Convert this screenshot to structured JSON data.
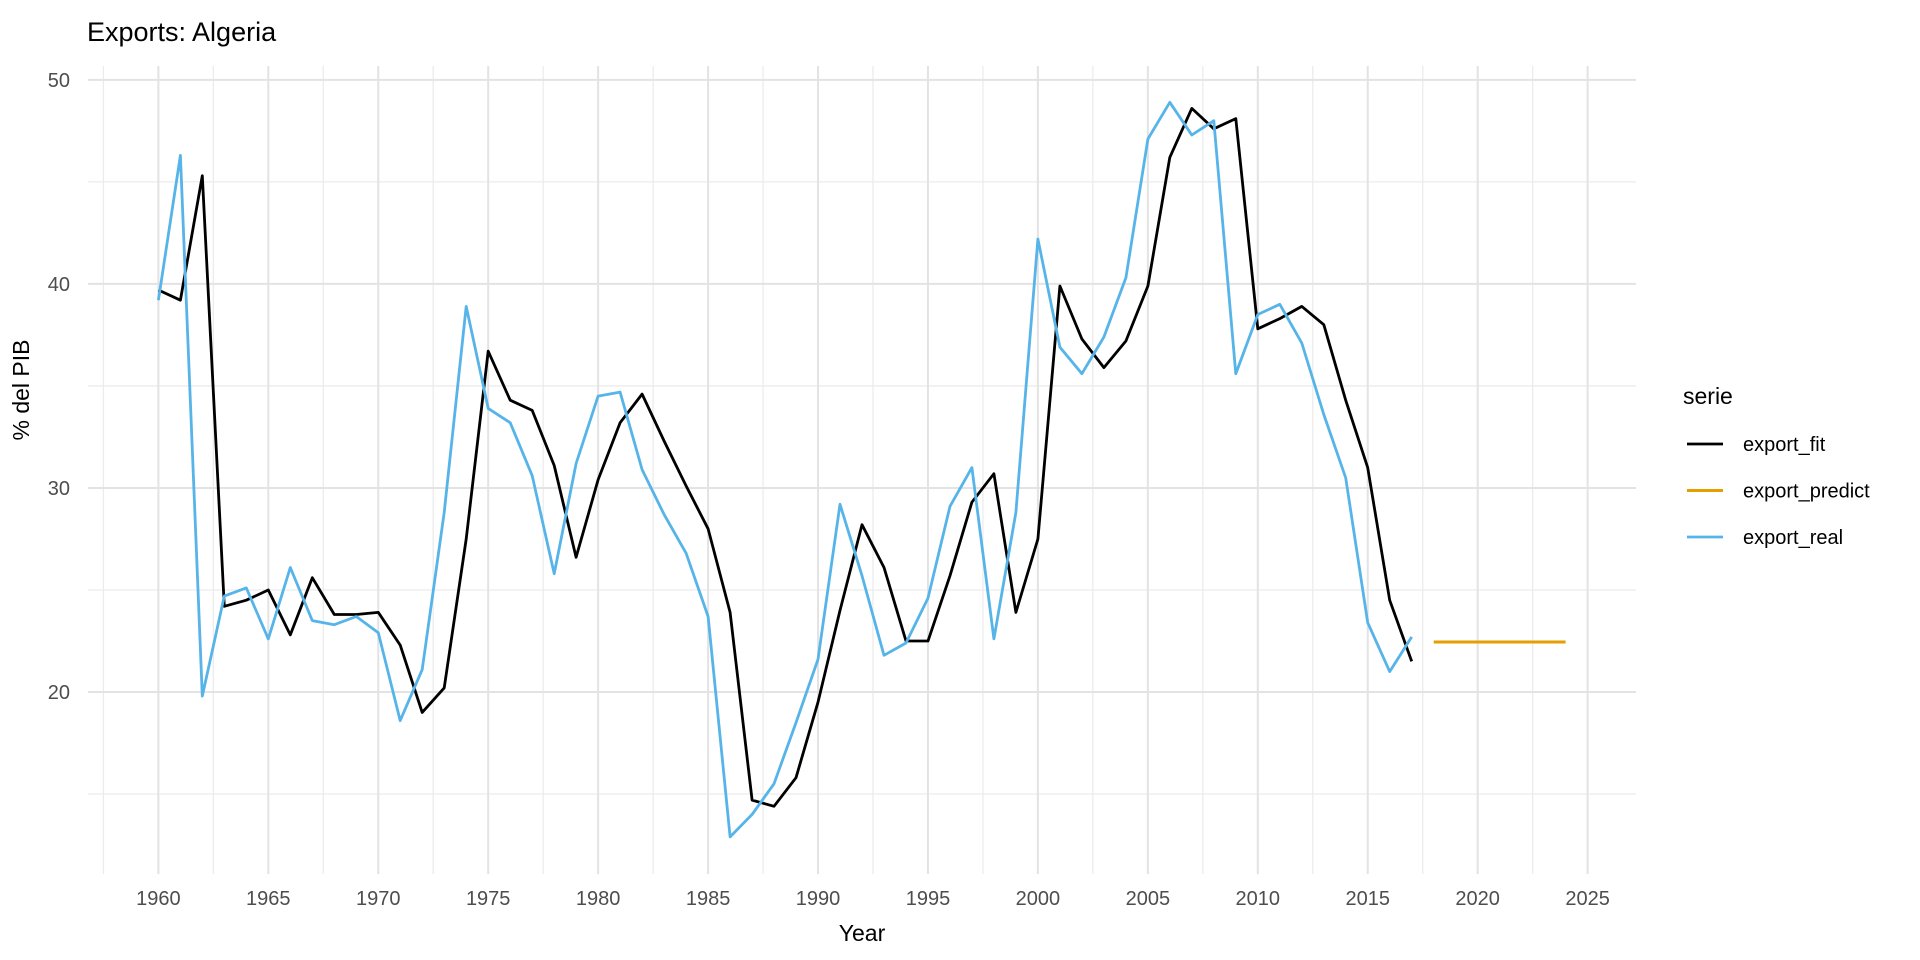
{
  "chart_data": {
    "type": "line",
    "title": "Exports: Algeria",
    "xlabel": "Year",
    "ylabel": "% del PIB",
    "legend_title": "serie",
    "legend_position": "right",
    "grid": true,
    "background": "#ffffff",
    "x_ticks": [
      1960,
      1965,
      1970,
      1975,
      1980,
      1985,
      1990,
      1995,
      2000,
      2005,
      2010,
      2015,
      2020,
      2025
    ],
    "x_minor_ticks": [
      1957.5,
      1962.5,
      1967.5,
      1972.5,
      1977.5,
      1982.5,
      1987.5,
      1992.5,
      1997.5,
      2002.5,
      2007.5,
      2012.5,
      2017.5,
      2022.5
    ],
    "y_ticks": [
      20,
      30,
      40,
      50
    ],
    "y_minor_ticks": [
      15,
      25,
      35,
      45
    ],
    "xlim": [
      1956.8,
      2027.2
    ],
    "ylim": [
      11.08,
      50.68
    ],
    "series": [
      {
        "name": "export_fit",
        "color": "#000000",
        "stroke_width": 2.8,
        "x": [
          1960,
          1961,
          1962,
          1963,
          1964,
          1965,
          1966,
          1967,
          1968,
          1969,
          1970,
          1971,
          1972,
          1973,
          1974,
          1975,
          1976,
          1977,
          1978,
          1979,
          1980,
          1981,
          1982,
          1983,
          1984,
          1985,
          1986,
          1987,
          1988,
          1989,
          1990,
          1991,
          1992,
          1993,
          1994,
          1995,
          1996,
          1997,
          1998,
          1999,
          2000,
          2001,
          2002,
          2003,
          2004,
          2005,
          2006,
          2007,
          2008,
          2009,
          2010,
          2011,
          2012,
          2013,
          2014,
          2015,
          2016,
          2017
        ],
        "values": [
          39.7,
          39.2,
          45.3,
          24.2,
          24.5,
          25.0,
          22.8,
          25.6,
          23.8,
          23.8,
          23.9,
          22.3,
          19.0,
          20.2,
          27.5,
          36.7,
          34.3,
          33.8,
          31.1,
          26.6,
          30.4,
          33.2,
          34.6,
          32.3,
          30.1,
          28.0,
          23.9,
          14.7,
          14.4,
          15.8,
          19.5,
          24.0,
          28.2,
          26.1,
          22.5,
          22.5,
          25.7,
          29.3,
          30.7,
          23.9,
          27.5,
          39.9,
          37.3,
          35.9,
          37.2,
          39.9,
          46.2,
          48.6,
          47.6,
          48.1,
          37.8,
          38.3,
          38.9,
          38.0,
          34.3,
          31.0,
          24.5,
          21.5
        ]
      },
      {
        "name": "export_predict",
        "color": "#E69F00",
        "stroke_width": 3,
        "x": [
          2018,
          2019,
          2020,
          2021,
          2022,
          2023,
          2024
        ],
        "values": [
          22.45,
          22.45,
          22.45,
          22.45,
          22.45,
          22.45,
          22.45
        ]
      },
      {
        "name": "export_real",
        "color": "#56B4E9",
        "stroke_width": 2.8,
        "x": [
          1960,
          1961,
          1962,
          1963,
          1964,
          1965,
          1966,
          1967,
          1968,
          1969,
          1970,
          1971,
          1972,
          1973,
          1974,
          1975,
          1976,
          1977,
          1978,
          1979,
          1980,
          1981,
          1982,
          1983,
          1984,
          1985,
          1986,
          1987,
          1988,
          1989,
          1990,
          1991,
          1992,
          1993,
          1994,
          1995,
          1996,
          1997,
          1998,
          1999,
          2000,
          2001,
          2002,
          2003,
          2004,
          2005,
          2006,
          2007,
          2008,
          2009,
          2010,
          2011,
          2012,
          2013,
          2014,
          2015,
          2016,
          2017
        ],
        "values": [
          39.2,
          46.3,
          19.8,
          24.7,
          25.1,
          22.6,
          26.1,
          23.5,
          23.3,
          23.7,
          22.9,
          18.6,
          21.1,
          28.8,
          38.9,
          33.9,
          33.2,
          30.6,
          25.8,
          31.2,
          34.5,
          34.7,
          30.9,
          28.7,
          26.8,
          23.7,
          12.9,
          14.0,
          15.5,
          18.5,
          21.6,
          29.2,
          25.7,
          21.8,
          22.4,
          24.6,
          29.1,
          31.0,
          22.6,
          28.8,
          42.2,
          36.9,
          35.6,
          37.4,
          40.3,
          47.1,
          48.9,
          47.3,
          48.0,
          35.6,
          38.5,
          39.0,
          37.1,
          33.6,
          30.5,
          23.4,
          21.0,
          22.7
        ]
      }
    ]
  }
}
